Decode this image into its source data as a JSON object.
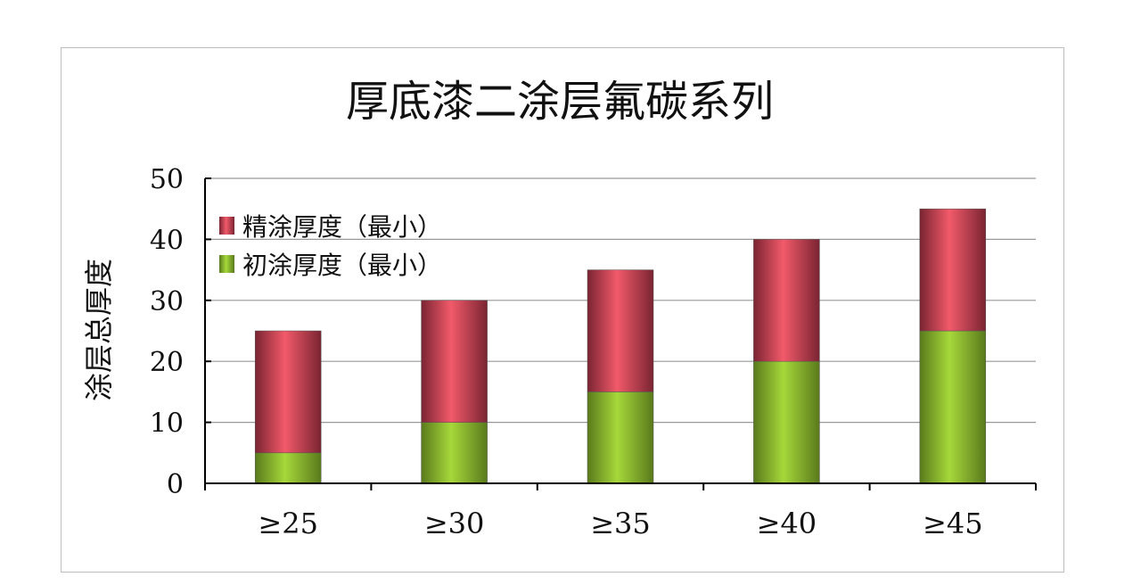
{
  "chart_data": {
    "type": "bar",
    "stacked": true,
    "title": "厚底漆二涂层氟碳系列",
    "xlabel": "",
    "ylabel": "涂层总厚度",
    "categories": [
      "≥25",
      "≥30",
      "≥35",
      "≥40",
      "≥45"
    ],
    "ylim": [
      0,
      50
    ],
    "yticks": [
      0,
      10,
      20,
      30,
      40,
      50
    ],
    "grid": true,
    "legend_position": "top-left",
    "series": [
      {
        "name": "初涂厚度（最小）",
        "values": [
          5,
          10,
          15,
          20,
          25
        ],
        "color": "#8fbf2a"
      },
      {
        "name": "精涂厚度（最小）",
        "values": [
          20,
          20,
          20,
          20,
          20
        ],
        "color": "#e0485a"
      }
    ]
  }
}
